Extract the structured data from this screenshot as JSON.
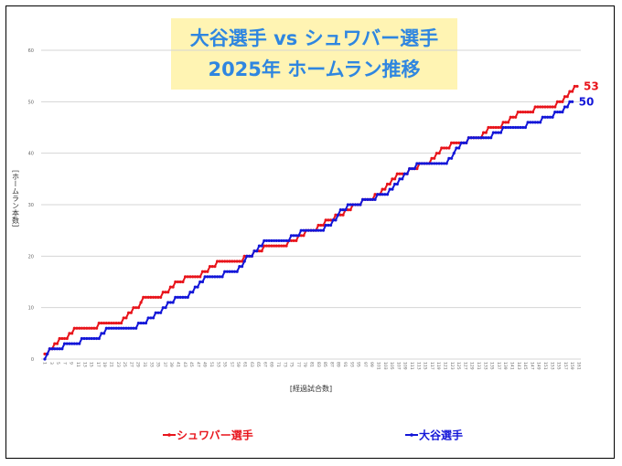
{
  "chart_data": {
    "type": "line",
    "title": [
      "大谷選手 vs シュワバー選手",
      "2025年 ホームラン推移"
    ],
    "xlabel": "[経過試合数]",
    "ylabel": "[ホームラン本数]",
    "ylim": [
      0,
      60
    ],
    "yticks": [
      "0",
      "10",
      "20",
      "30",
      "40",
      "50",
      "60"
    ],
    "xlim": [
      1,
      162
    ],
    "xticks": [
      "1",
      "3",
      "5",
      "7",
      "9",
      "11",
      "13",
      "15",
      "17",
      "19",
      "21",
      "23",
      "25",
      "27",
      "29",
      "31",
      "33",
      "35",
      "37",
      "39",
      "41",
      "43",
      "45",
      "47",
      "49",
      "51",
      "53",
      "55",
      "57",
      "59",
      "61",
      "63",
      "65",
      "67",
      "69",
      "71",
      "73",
      "75",
      "77",
      "79",
      "81",
      "83",
      "85",
      "87",
      "89",
      "91",
      "93",
      "95",
      "97",
      "99",
      "101",
      "103",
      "105",
      "107",
      "109",
      "111",
      "113",
      "115",
      "117",
      "119",
      "121",
      "123",
      "125",
      "127",
      "129",
      "131",
      "133",
      "135",
      "137",
      "139",
      "141",
      "143",
      "145",
      "147",
      "149",
      "151",
      "153",
      "155",
      "157",
      "159",
      "161"
    ],
    "grid": true,
    "legend_position": "bottom",
    "series": [
      {
        "name": "シュワバー選手",
        "color": "#e8141b",
        "end_label": "53",
        "steps": [
          [
            1,
            1
          ],
          [
            3,
            2
          ],
          [
            5,
            3
          ],
          [
            7,
            4
          ],
          [
            11,
            5
          ],
          [
            13,
            6
          ],
          [
            23,
            7
          ],
          [
            33,
            8
          ],
          [
            35,
            9
          ],
          [
            37,
            10
          ],
          [
            40,
            11
          ],
          [
            41,
            12
          ],
          [
            49,
            13
          ],
          [
            52,
            14
          ],
          [
            54,
            15
          ],
          [
            58,
            16
          ],
          [
            65,
            17
          ],
          [
            68,
            18
          ],
          [
            71,
            19
          ],
          [
            82,
            20
          ],
          [
            86,
            21
          ],
          [
            90,
            22
          ],
          [
            100,
            23
          ],
          [
            104,
            24
          ],
          [
            107,
            25
          ],
          [
            112,
            26
          ],
          [
            115,
            27
          ],
          [
            119,
            28
          ],
          [
            123,
            29
          ],
          [
            126,
            30
          ],
          [
            130,
            31
          ],
          [
            135,
            32
          ],
          [
            138,
            33
          ],
          [
            140,
            34
          ],
          [
            142,
            35
          ],
          [
            144,
            36
          ],
          [
            149,
            37
          ],
          [
            153,
            38
          ],
          [
            158,
            39
          ],
          [
            160,
            40
          ],
          [
            162,
            41
          ],
          [
            166,
            42
          ],
          [
            173,
            43
          ],
          [
            179,
            44
          ],
          [
            181,
            45
          ],
          [
            187,
            46
          ],
          [
            190,
            47
          ],
          [
            193,
            48
          ],
          [
            200,
            49
          ],
          [
            209,
            50
          ],
          [
            212,
            51
          ],
          [
            214,
            52
          ],
          [
            216,
            53
          ]
        ],
        "last_game": 217
      },
      {
        "name": "大谷選手",
        "color": "#1316d8",
        "end_label": "50",
        "steps": [
          [
            1,
            0
          ],
          [
            2,
            1
          ],
          [
            3,
            2
          ],
          [
            9,
            3
          ],
          [
            16,
            4
          ],
          [
            24,
            5
          ],
          [
            26,
            6
          ],
          [
            39,
            7
          ],
          [
            43,
            8
          ],
          [
            46,
            9
          ],
          [
            49,
            10
          ],
          [
            51,
            11
          ],
          [
            54,
            12
          ],
          [
            60,
            13
          ],
          [
            62,
            14
          ],
          [
            64,
            15
          ],
          [
            66,
            16
          ],
          [
            74,
            17
          ],
          [
            80,
            18
          ],
          [
            82,
            19
          ],
          [
            83,
            20
          ],
          [
            86,
            21
          ],
          [
            88,
            22
          ],
          [
            90,
            23
          ],
          [
            101,
            24
          ],
          [
            105,
            25
          ],
          [
            115,
            26
          ],
          [
            118,
            27
          ],
          [
            120,
            28
          ],
          [
            121,
            29
          ],
          [
            124,
            30
          ],
          [
            130,
            31
          ],
          [
            136,
            32
          ],
          [
            141,
            33
          ],
          [
            143,
            34
          ],
          [
            145,
            35
          ],
          [
            147,
            36
          ],
          [
            149,
            37
          ],
          [
            152,
            38
          ],
          [
            165,
            39
          ],
          [
            167,
            40
          ],
          [
            168,
            41
          ],
          [
            170,
            42
          ],
          [
            173,
            43
          ],
          [
            183,
            44
          ],
          [
            187,
            45
          ],
          [
            197,
            46
          ],
          [
            203,
            47
          ],
          [
            208,
            48
          ],
          [
            212,
            49
          ],
          [
            214,
            50
          ]
        ],
        "last_game": 215
      }
    ]
  }
}
